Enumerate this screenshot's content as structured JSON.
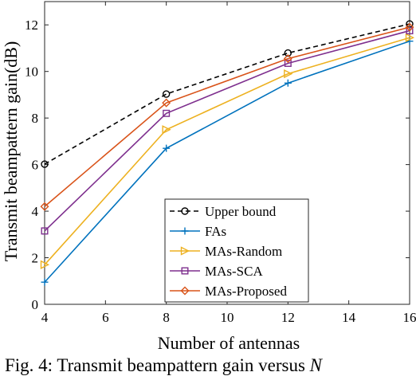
{
  "chart_data": {
    "type": "line",
    "title": "",
    "xlabel": "Number of antennas",
    "ylabel": "Transmit beampattern gain(dB)",
    "xlim": [
      4,
      16
    ],
    "ylim": [
      0,
      13
    ],
    "xticks": [
      4,
      6,
      8,
      10,
      12,
      14,
      16
    ],
    "yticks": [
      0,
      2,
      4,
      6,
      8,
      10,
      12
    ],
    "grid": false,
    "legend_position": "bottom-center",
    "x": [
      4,
      8,
      12,
      16
    ],
    "series": [
      {
        "name": "Upper bound",
        "values": [
          6.02,
          9.03,
          10.79,
          12.04
        ],
        "color": "#000000",
        "dash": "dashed",
        "marker": "circle"
      },
      {
        "name": "FAs",
        "values": [
          0.95,
          6.7,
          9.5,
          11.3
        ],
        "color": "#0072BD",
        "dash": "solid",
        "marker": "plus"
      },
      {
        "name": "MAs-Random",
        "values": [
          1.7,
          7.5,
          9.9,
          11.45
        ],
        "color": "#EDB120",
        "dash": "solid",
        "marker": "triangle-right"
      },
      {
        "name": "MAs-SCA",
        "values": [
          3.15,
          8.2,
          10.35,
          11.75
        ],
        "color": "#7E2F8E",
        "dash": "solid",
        "marker": "square"
      },
      {
        "name": "MAs-Proposed",
        "values": [
          4.2,
          8.65,
          10.55,
          11.9
        ],
        "color": "#D95319",
        "dash": "solid",
        "marker": "diamond"
      }
    ]
  },
  "caption": {
    "prefix": "Fig. 4: Transmit beampattern gain versus ",
    "symbol": "N"
  }
}
